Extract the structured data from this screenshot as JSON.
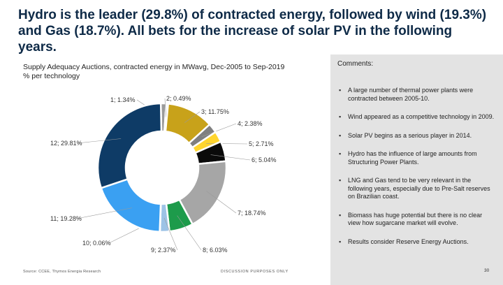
{
  "title": "Hydro is the leader (29.8%) of contracted energy, followed by wind (19.3%) and Gas (18.7%). All bets for the increase of solar PV in the following years.",
  "subtitle": {
    "line1": "Supply Adequacy Auctions, contracted energy in MWavg, Dec-2005 to Sep-2019",
    "line2": "% per technology"
  },
  "comments": {
    "header": "Comments:",
    "items": [
      "A large number of thermal power plants were contracted between 2005-10.",
      "Wind appeared as a competitive technology in 2009.",
      "Solar PV begins as a serious player in 2014.",
      "Hydro has the influence of large amounts from Structuring Power Plants.",
      "LNG and Gas tend to be very relevant in the following years, especially due to Pre-Salt reserves on Brazilian coast.",
      "Biomass has huge potential but there is no clear view how sugarcane market will evolve.",
      "Results consider Reserve Energy Auctions."
    ]
  },
  "footer": {
    "source": "Source: CCEE, Thymos Energia Research",
    "discussion": "DISCUSSION PURPOSES ONLY",
    "page_number": "30"
  },
  "chart_data": {
    "type": "pie",
    "variant": "donut",
    "unit": "% per technology",
    "labels": [
      "1; 1.34%",
      "2; 0.49%",
      "3; 11.75%",
      "4; 2.38%",
      "5; 2.71%",
      "6; 5.04%",
      "7; 18.74%",
      "8; 6.03%",
      "9; 2.37%",
      "10; 0.06%",
      "11; 19.28%",
      "12; 29.81%"
    ],
    "categories": [
      "1",
      "2",
      "3",
      "4",
      "5",
      "6",
      "7",
      "8",
      "9",
      "10",
      "11",
      "12"
    ],
    "values": [
      1.34,
      0.49,
      11.75,
      2.38,
      2.71,
      5.04,
      18.74,
      6.03,
      2.37,
      0.06,
      19.28,
      29.81
    ],
    "colors": [
      "#9b9b9b",
      "#d9d9d9",
      "#c8a21a",
      "#7f7f7f",
      "#ffd52e",
      "#0a0a0a",
      "#a6a6a6",
      "#1d9b4b",
      "#9dc3e6",
      "#5ba3e0",
      "#3aa0f2",
      "#0e3b66"
    ]
  }
}
